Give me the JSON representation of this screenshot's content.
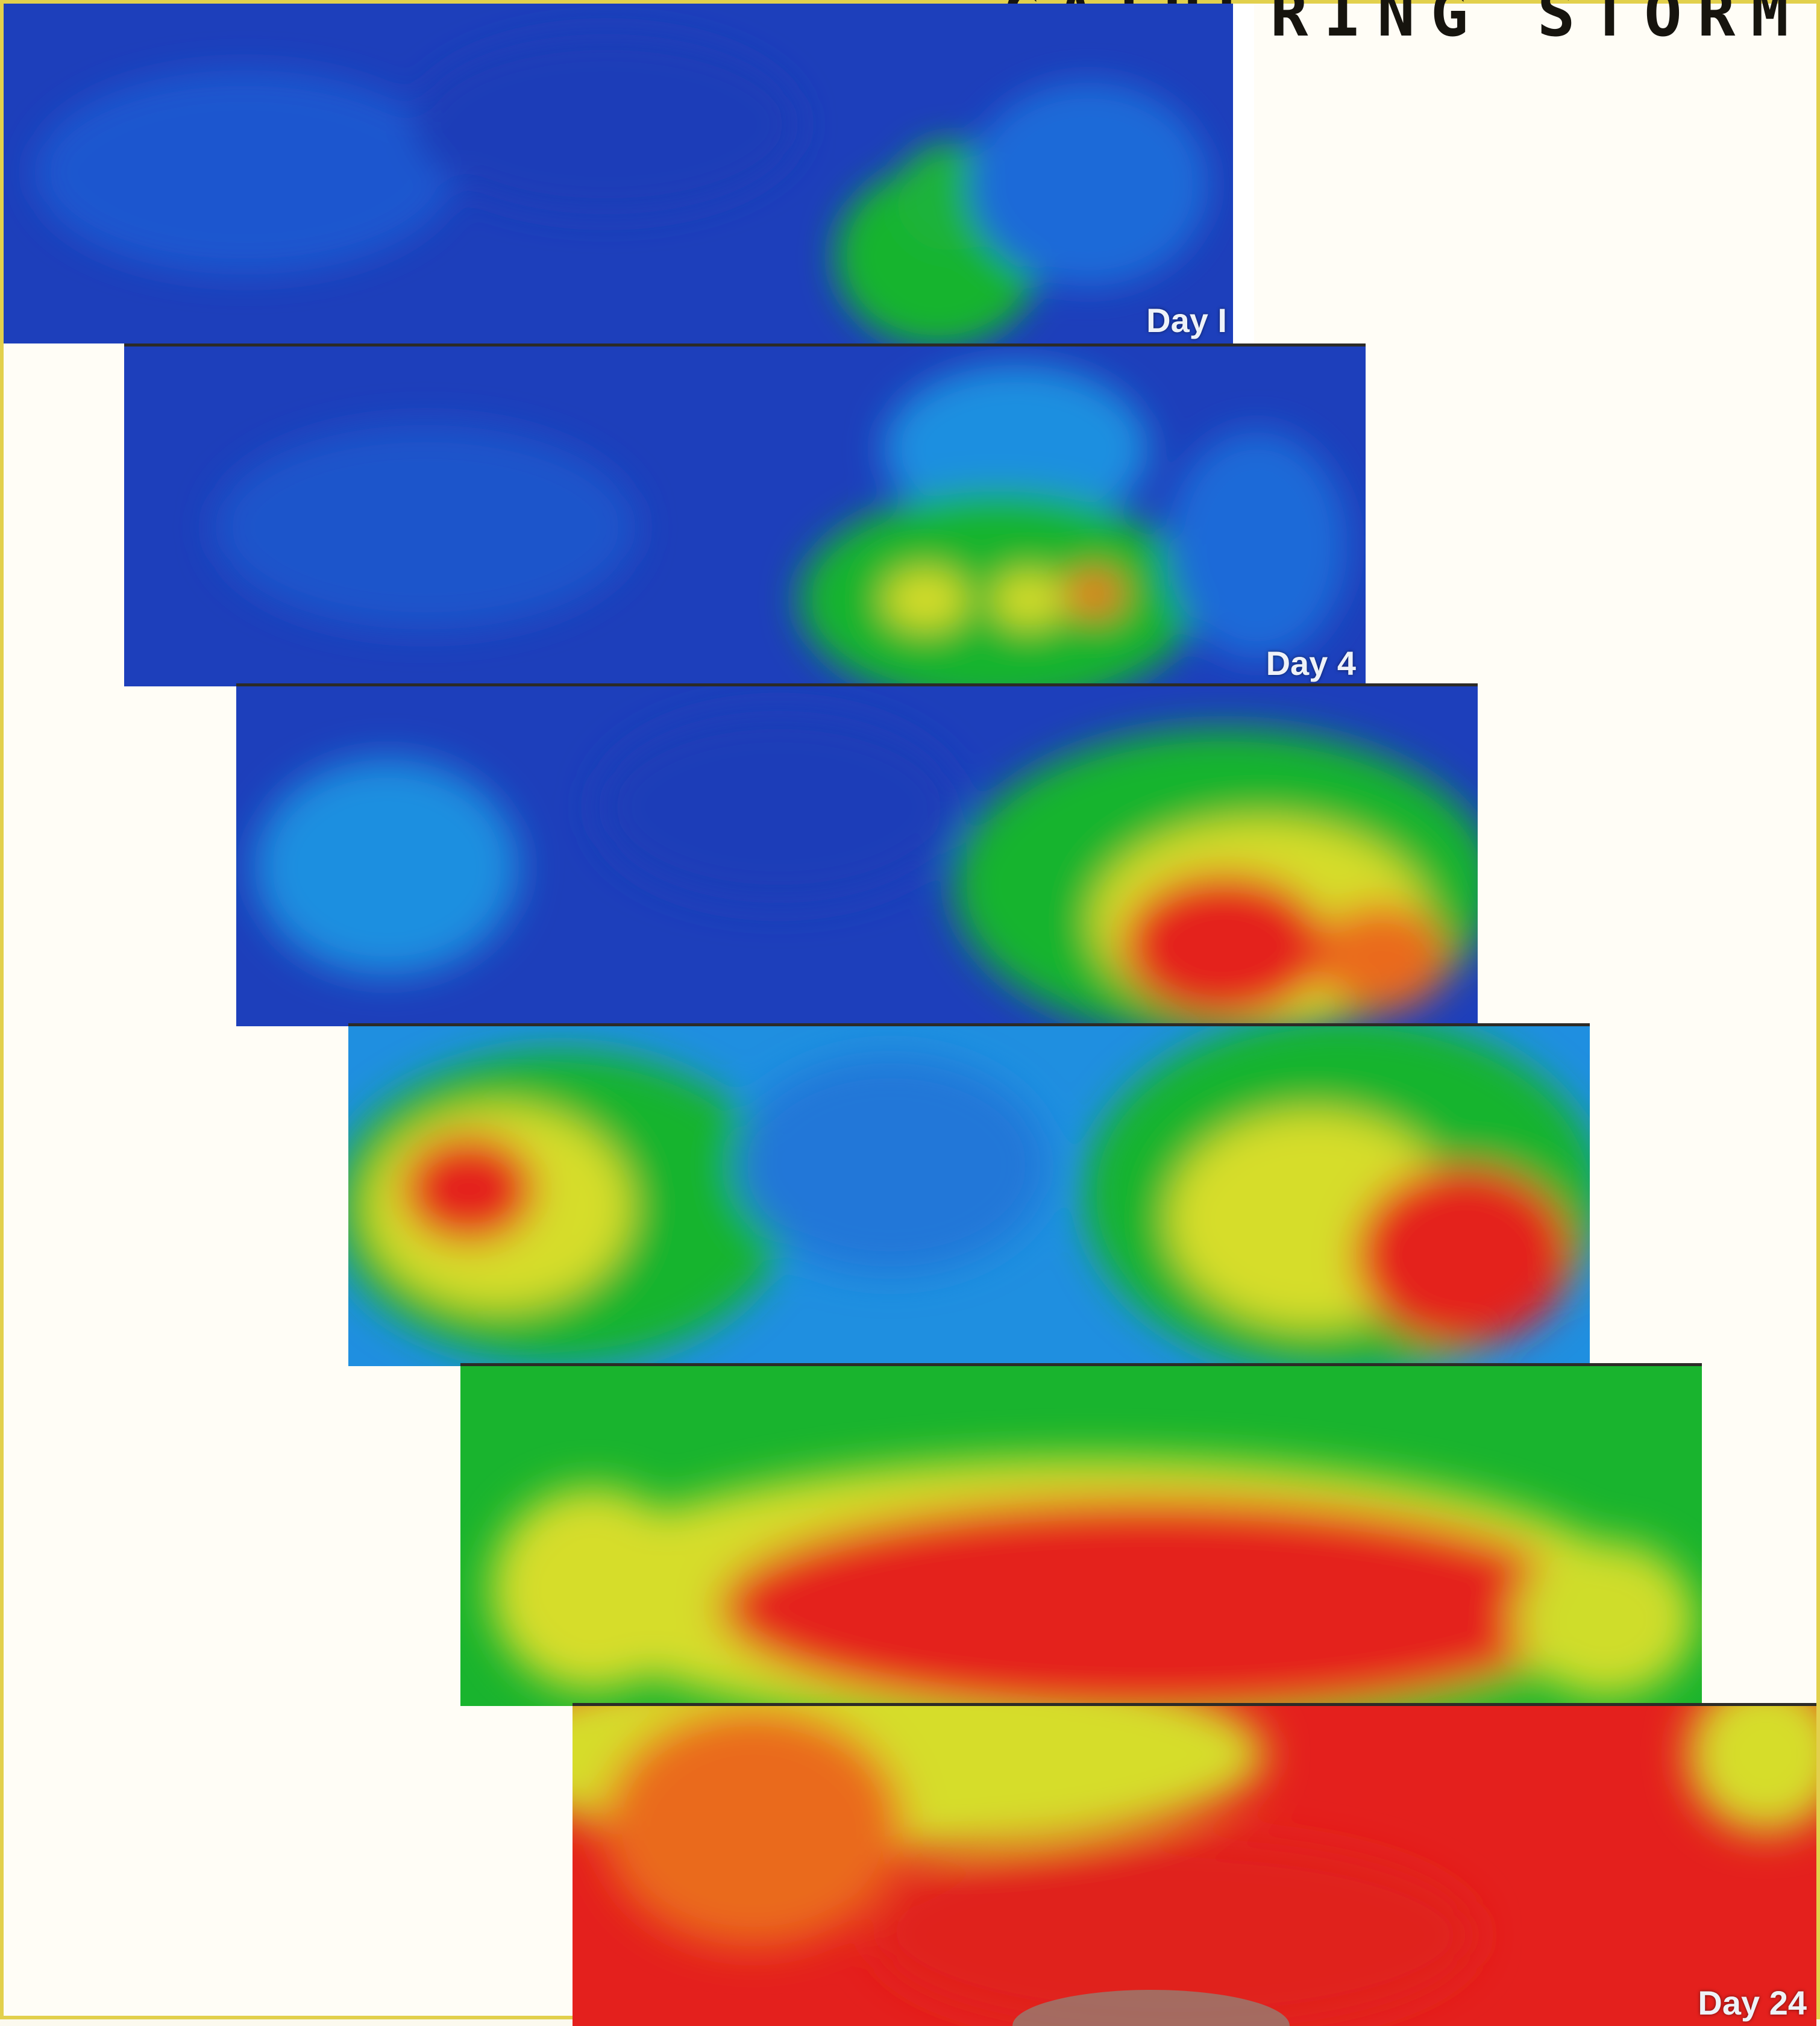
{
  "title": "GATHERING STORM",
  "colors": {
    "frame": "#e2d04c",
    "blue": "#1d3fbb",
    "cyan": "#1f8fe0",
    "green": "#19b42e",
    "yellow": "#d6dd2a",
    "red": "#e4201d"
  },
  "frames": [
    {
      "label": "Day I"
    },
    {
      "label": "Day 4"
    },
    {
      "label": ""
    },
    {
      "label": ""
    },
    {
      "label": ""
    },
    {
      "label": "Day 24"
    }
  ]
}
